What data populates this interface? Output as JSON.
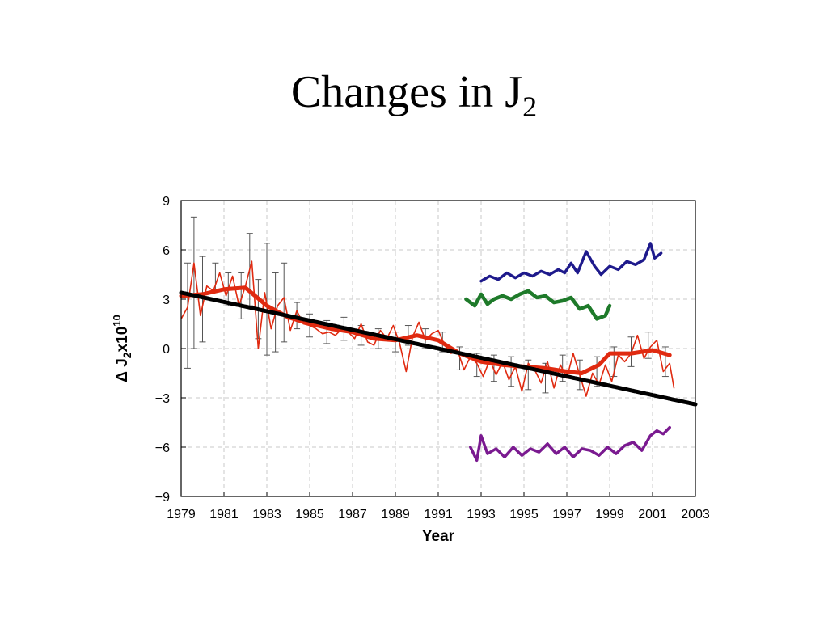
{
  "slide": {
    "title_main": "Changes in J",
    "title_sub": "2"
  },
  "chart_data": {
    "type": "line",
    "xlabel": "Year",
    "ylabel_prefix": "Δ J",
    "ylabel_sub": "2",
    "ylabel_mid": "x10",
    "ylabel_sup": "10",
    "xlim": [
      1979,
      2003
    ],
    "ylim": [
      -9,
      9
    ],
    "x_ticks": [
      1979,
      1981,
      1983,
      1985,
      1987,
      1989,
      1991,
      1993,
      1995,
      1997,
      1999,
      2001,
      2003
    ],
    "y_ticks": [
      9,
      6,
      3,
      0,
      -3,
      -6,
      -9
    ],
    "y_tick_labels": [
      "9",
      "6",
      "3",
      "0",
      "−3",
      "−6",
      "−9"
    ],
    "grid": true,
    "colors": {
      "red": "#e02a10",
      "black": "#000000",
      "blue": "#1e1a8c",
      "green": "#1e7a2a",
      "purple": "#7a1a90",
      "errorbar": "#555555",
      "grid": "#c8c8c8"
    },
    "series": [
      {
        "key": "monthly",
        "color": "red",
        "x": [
          1979.0,
          1979.3,
          1979.6,
          1979.9,
          1980.2,
          1980.5,
          1980.8,
          1981.1,
          1981.4,
          1981.7,
          1982.0,
          1982.3,
          1982.6,
          1982.9,
          1983.2,
          1983.5,
          1983.8,
          1984.1,
          1984.4,
          1984.7,
          1985.0,
          1985.3,
          1985.6,
          1985.9,
          1986.2,
          1986.5,
          1986.8,
          1987.1,
          1987.4,
          1987.7,
          1988.0,
          1988.3,
          1988.6,
          1988.9,
          1989.2,
          1989.5,
          1989.8,
          1990.1,
          1990.4,
          1990.7,
          1991.0,
          1991.3,
          1991.6,
          1991.9,
          1992.2,
          1992.5,
          1992.8,
          1993.1,
          1993.4,
          1993.7,
          1994.0,
          1994.3,
          1994.6,
          1994.9,
          1995.2,
          1995.5,
          1995.8,
          1996.1,
          1996.4,
          1996.7,
          1997.0,
          1997.3,
          1997.6,
          1997.9,
          1998.2,
          1998.5,
          1998.8,
          1999.1,
          1999.4,
          1999.7,
          2000.0,
          2000.3,
          2000.6,
          2000.9,
          2001.2,
          2001.5,
          2001.8,
          2002.0
        ],
        "y": [
          1.8,
          2.5,
          5.2,
          2.0,
          3.8,
          3.5,
          4.6,
          3.2,
          4.4,
          2.6,
          3.8,
          5.3,
          0.0,
          3.4,
          1.2,
          2.6,
          3.1,
          1.1,
          2.3,
          1.5,
          1.4,
          1.2,
          0.9,
          1.0,
          0.8,
          1.2,
          1.0,
          0.6,
          1.5,
          0.4,
          0.2,
          1.1,
          0.6,
          1.4,
          0.3,
          -1.4,
          0.7,
          1.6,
          0.5,
          0.9,
          1.1,
          0.2,
          -0.3,
          -0.1,
          -1.3,
          -0.5,
          -0.9,
          -1.7,
          -0.7,
          -1.6,
          -0.8,
          -1.9,
          -1.1,
          -2.6,
          -0.9,
          -1.3,
          -2.1,
          -0.8,
          -2.4,
          -1.0,
          -1.8,
          -0.3,
          -1.6,
          -2.9,
          -1.5,
          -2.2,
          -1.0,
          -2.0,
          -0.4,
          -0.8,
          -0.3,
          0.8,
          -0.6,
          0.1,
          0.5,
          -1.4,
          -0.9,
          -2.4
        ]
      },
      {
        "key": "smoothed",
        "color": "red",
        "x": [
          1979.0,
          1980.0,
          1981.0,
          1982.0,
          1983.0,
          1984.0,
          1985.0,
          1986.0,
          1987.0,
          1988.0,
          1989.0,
          1990.0,
          1991.0,
          1992.0,
          1993.0,
          1994.0,
          1995.0,
          1996.0,
          1997.0,
          1997.7,
          1998.5,
          1999.0,
          2000.0,
          2001.0,
          2001.8
        ],
        "y": [
          3.2,
          3.3,
          3.6,
          3.7,
          2.6,
          1.9,
          1.5,
          1.2,
          1.0,
          0.6,
          0.5,
          0.8,
          0.5,
          -0.3,
          -0.8,
          -1.0,
          -1.1,
          -1.2,
          -1.4,
          -1.5,
          -1.0,
          -0.3,
          -0.3,
          -0.1,
          -0.4
        ]
      },
      {
        "key": "trend",
        "color": "black",
        "x": [
          1979,
          2003
        ],
        "y": [
          3.4,
          -3.4
        ]
      },
      {
        "key": "blue",
        "color": "blue",
        "x": [
          1993.0,
          1993.4,
          1993.8,
          1994.2,
          1994.6,
          1995.0,
          1995.4,
          1995.8,
          1996.2,
          1996.6,
          1996.9,
          1997.2,
          1997.5,
          1997.9,
          1998.3,
          1998.6,
          1999.0,
          1999.4,
          1999.8,
          2000.2,
          2000.6,
          2000.9,
          2001.1,
          2001.4
        ],
        "y": [
          4.1,
          4.4,
          4.2,
          4.6,
          4.3,
          4.6,
          4.4,
          4.7,
          4.5,
          4.8,
          4.6,
          5.2,
          4.6,
          5.9,
          5.0,
          4.5,
          5.0,
          4.8,
          5.3,
          5.1,
          5.4,
          6.4,
          5.5,
          5.8
        ]
      },
      {
        "key": "green",
        "color": "green",
        "x": [
          1992.3,
          1992.7,
          1993.0,
          1993.3,
          1993.6,
          1994.0,
          1994.4,
          1994.8,
          1995.2,
          1995.6,
          1996.0,
          1996.4,
          1996.8,
          1997.2,
          1997.6,
          1998.0,
          1998.4,
          1998.8,
          1999.0
        ],
        "y": [
          3.0,
          2.6,
          3.3,
          2.7,
          3.0,
          3.2,
          3.0,
          3.3,
          3.5,
          3.1,
          3.2,
          2.8,
          2.9,
          3.1,
          2.4,
          2.6,
          1.8,
          2.0,
          2.6
        ]
      },
      {
        "key": "purple",
        "color": "purple",
        "x": [
          1992.5,
          1992.8,
          1993.0,
          1993.3,
          1993.7,
          1994.1,
          1994.5,
          1994.9,
          1995.3,
          1995.7,
          1996.1,
          1996.5,
          1996.9,
          1997.3,
          1997.7,
          1998.1,
          1998.5,
          1998.9,
          1999.3,
          1999.7,
          2000.1,
          2000.5,
          2000.9,
          2001.2,
          2001.5,
          2001.8
        ],
        "y": [
          -6.0,
          -6.8,
          -5.3,
          -6.4,
          -6.1,
          -6.6,
          -6.0,
          -6.5,
          -6.1,
          -6.3,
          -5.8,
          -6.4,
          -6.0,
          -6.6,
          -6.1,
          -6.2,
          -6.5,
          -6.0,
          -6.4,
          -5.9,
          -5.7,
          -6.2,
          -5.3,
          -5.0,
          -5.2,
          -4.8
        ]
      }
    ],
    "error_bars": {
      "x": [
        1979.3,
        1979.6,
        1980.0,
        1980.6,
        1981.2,
        1981.8,
        1982.2,
        1982.6,
        1983.0,
        1983.4,
        1983.8,
        1984.4,
        1985.0,
        1985.8,
        1986.6,
        1987.4,
        1988.2,
        1989.0,
        1989.6,
        1990.4,
        1991.2,
        1992.0,
        1992.8,
        1993.6,
        1994.4,
        1995.2,
        1996.0,
        1996.8,
        1997.6,
        1998.4,
        1999.2,
        2000.0,
        2000.8,
        2001.6
      ],
      "y": [
        2.0,
        4.0,
        3.0,
        4.4,
        3.6,
        3.2,
        4.8,
        2.4,
        3.0,
        2.2,
        2.8,
        2.0,
        1.4,
        1.0,
        1.2,
        0.8,
        0.6,
        0.4,
        0.8,
        0.6,
        0.4,
        -0.6,
        -1.0,
        -1.2,
        -1.4,
        -1.6,
        -1.8,
        -1.2,
        -1.6,
        -1.4,
        -0.8,
        -0.2,
        0.2,
        -0.8
      ],
      "half_width": [
        3.2,
        4.0,
        2.6,
        0.8,
        1.0,
        1.4,
        2.2,
        1.8,
        3.4,
        2.4,
        2.4,
        0.8,
        0.7,
        0.7,
        0.7,
        0.6,
        0.6,
        0.6,
        0.6,
        0.6,
        0.6,
        0.7,
        0.7,
        0.8,
        0.9,
        0.9,
        0.9,
        0.8,
        0.9,
        0.9,
        0.9,
        0.9,
        0.8,
        0.9
      ]
    }
  }
}
